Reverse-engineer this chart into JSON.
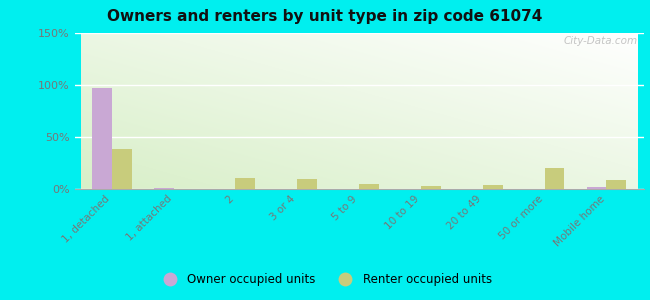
{
  "title": "Owners and renters by unit type in zip code 61074",
  "categories": [
    "1, detached",
    "1, attached",
    "2",
    "3 or 4",
    "5 to 9",
    "10 to 19",
    "20 to 49",
    "50 or more",
    "Mobile home"
  ],
  "owner_values": [
    97,
    1,
    0,
    0,
    0,
    0,
    0,
    0,
    2
  ],
  "renter_values": [
    38,
    0,
    11,
    10,
    5,
    3,
    4,
    20,
    9
  ],
  "owner_color": "#c9a8d4",
  "renter_color": "#c8cc7c",
  "ylim": [
    0,
    150
  ],
  "yticks": [
    0,
    50,
    100,
    150
  ],
  "ytick_labels": [
    "0%",
    "50%",
    "100%",
    "150%"
  ],
  "outer_background": "#00efef",
  "watermark": "City-Data.com",
  "legend_owner": "Owner occupied units",
  "legend_renter": "Renter occupied units",
  "bar_width": 0.32
}
